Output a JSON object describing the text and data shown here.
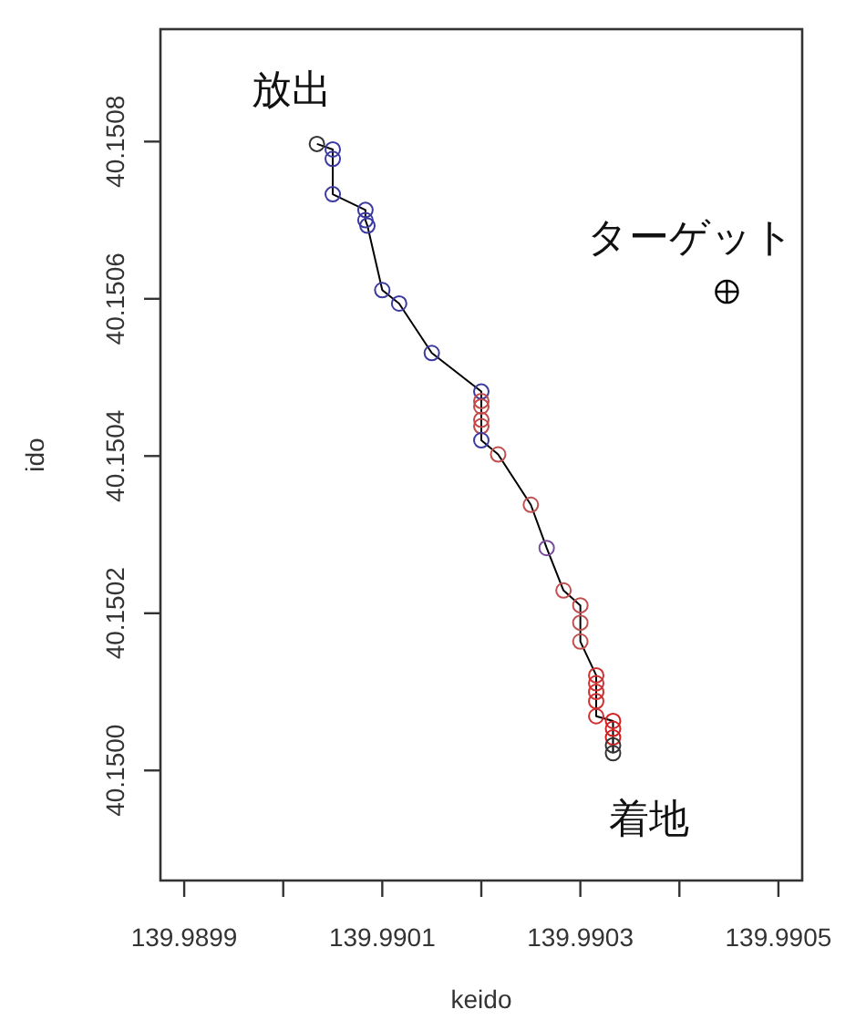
{
  "chart_data": {
    "type": "line",
    "xlabel": "keido",
    "ylabel": "ido",
    "xlim": [
      139.989876,
      139.990524
    ],
    "ylim": [
      40.14986,
      40.150943
    ],
    "xticks": [
      139.9899,
      {
        "value": 139.99,
        "label": null
      },
      139.9901,
      {
        "value": 139.9902,
        "label": null
      },
      139.9903,
      {
        "value": 139.9904,
        "label": null
      },
      139.9905
    ],
    "yticks": [
      {
        "value": 40.15,
        "label": "40.1500"
      },
      40.1502,
      40.1504,
      40.1506,
      40.1508
    ],
    "grid": false,
    "series": [
      {
        "color": "#000000",
        "marker": "circle",
        "x": [
          139.990034,
          139.99005,
          139.99005,
          139.99005,
          139.990083,
          139.990083,
          139.990085,
          139.9901,
          139.990117,
          139.99015,
          139.9902,
          139.9902,
          139.9902,
          139.9902,
          139.9902,
          139.9902,
          139.990217,
          139.99025,
          139.990266,
          139.990283,
          139.9903,
          139.9903,
          139.9903,
          139.990316,
          139.990316,
          139.990316,
          139.990316,
          139.990316,
          139.990333,
          139.990333,
          139.990333,
          139.990333,
          139.990333
        ],
        "values": [
          40.150797,
          40.15079,
          40.150778,
          40.150733,
          40.150713,
          40.1507,
          40.150693,
          40.150611,
          40.150594,
          40.150531,
          40.150482,
          40.15047,
          40.150463,
          40.150446,
          40.150438,
          40.15042,
          40.150402,
          40.150338,
          40.150283,
          40.150229,
          40.15021,
          40.150188,
          40.150164,
          40.150121,
          40.150111,
          40.1501,
          40.150088,
          40.150069,
          40.150063,
          40.150053,
          40.150042,
          40.150032,
          40.150022
        ],
        "colors": [
          "#333333",
          "#3a3aa0",
          "#3a3aa0",
          "#3a3aa0",
          "#3a3aa0",
          "#3a3aa0",
          "#3a3aa0",
          "#3a3aa0",
          "#3a3aa0",
          "#3a3aa0",
          "#3a3aa0",
          "#c04848",
          "#c04848",
          "#c04848",
          "#c04848",
          "#3a3aa0",
          "#c05050",
          "#c05050",
          "#7a4a9a",
          "#c05050",
          "#c05050",
          "#c05050",
          "#c05050",
          "#d03030",
          "#d03030",
          "#d03030",
          "#d03030",
          "#d03030",
          "#d02020",
          "#d02020",
          "#d02020",
          "#333333",
          "#333333"
        ]
      },
      {
        "type": "scatter",
        "color": "#000000",
        "marker": "circle-cross",
        "x": [
          139.990448
        ],
        "values": [
          40.150609
        ]
      }
    ],
    "annotations": [
      {
        "text": "放出",
        "x": 139.990034,
        "y": 40.150797
      },
      {
        "text": "ターゲット",
        "x": 139.990448,
        "y": 40.150609
      },
      {
        "text": "着地",
        "x": 139.990333,
        "y": 40.150022
      }
    ]
  }
}
